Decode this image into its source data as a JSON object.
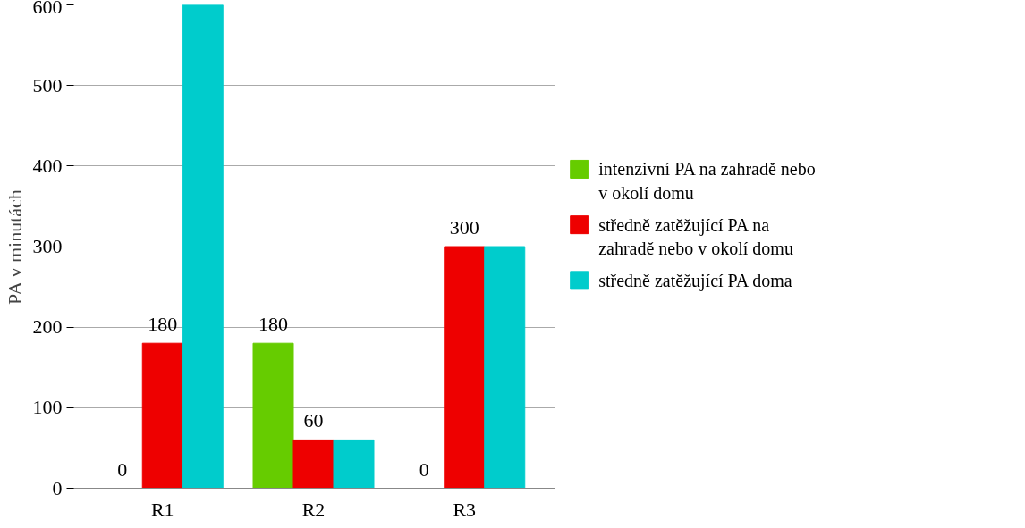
{
  "chart_data": {
    "type": "bar",
    "ylabel": "PA v minutách",
    "categories": [
      "R1",
      "R2",
      "R3"
    ],
    "ylim": [
      0,
      600
    ],
    "yticks": [
      0,
      100,
      200,
      300,
      400,
      500,
      600
    ],
    "grid": "y",
    "legend": "right",
    "series": [
      {
        "name": "intenzivní PA na zahradě nebo v okolí domu",
        "color": "#66cc00",
        "values": [
          0,
          180,
          0
        ],
        "value_labels": [
          "0",
          "180",
          "0"
        ]
      },
      {
        "name": "středně zatěžující PA na zahradě nebo v okolí domu",
        "color": "#ee0000",
        "values": [
          180,
          60,
          300
        ],
        "value_labels": [
          "180",
          "60",
          "300"
        ]
      },
      {
        "name": "středně zatěžující PA doma",
        "color": "#00cccc",
        "values": [
          600,
          60,
          300
        ],
        "value_labels": [
          null,
          null,
          null
        ]
      }
    ]
  }
}
